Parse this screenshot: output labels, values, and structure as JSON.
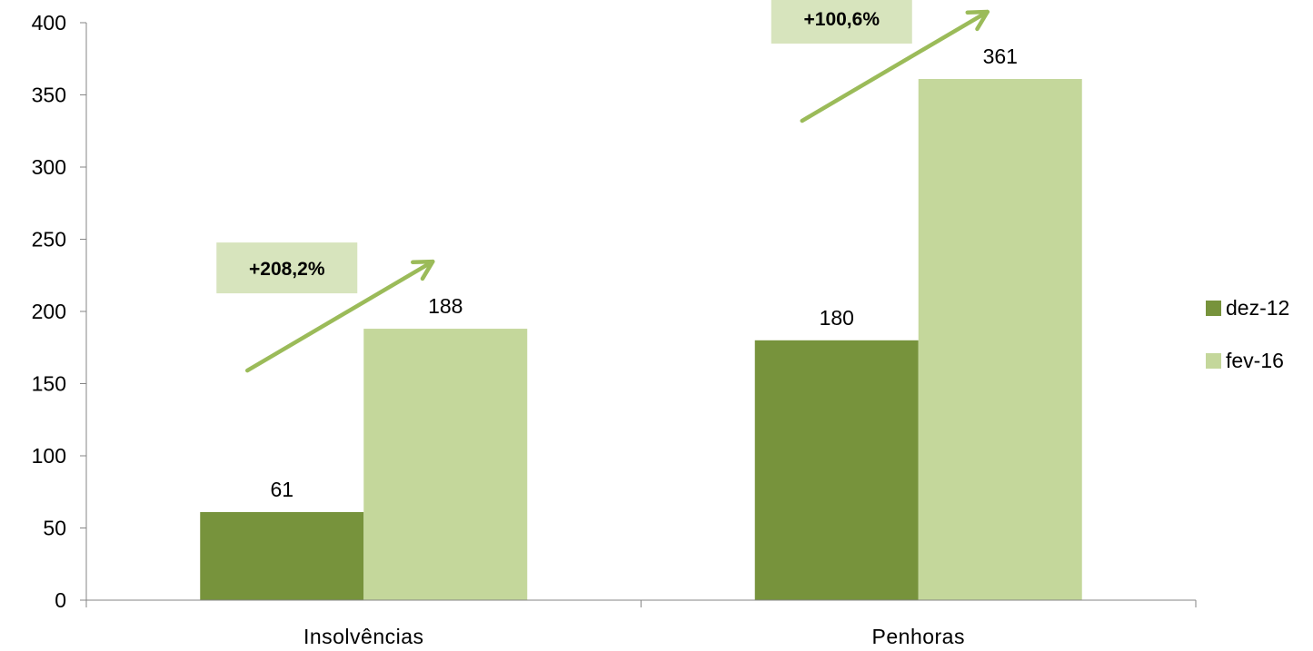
{
  "chart_data": {
    "type": "bar",
    "categories": [
      "Insolvências",
      "Penhoras"
    ],
    "series": [
      {
        "name": "dez-12",
        "values": [
          61,
          180
        ],
        "color": "#77933c"
      },
      {
        "name": "fev-16",
        "values": [
          188,
          361
        ],
        "color": "#c4d79b"
      }
    ],
    "ylim": [
      0,
      400
    ],
    "yticks": [
      0,
      50,
      100,
      150,
      200,
      250,
      300,
      350,
      400
    ],
    "grid": false,
    "legend": "right",
    "annotations": [
      {
        "text": "+208,2%",
        "category": "Insolvências"
      },
      {
        "text": "+100,6%",
        "category": "Penhoras"
      }
    ],
    "annotation_box_color": "#d7e4bd",
    "arrow_color": "#9bbb59"
  }
}
